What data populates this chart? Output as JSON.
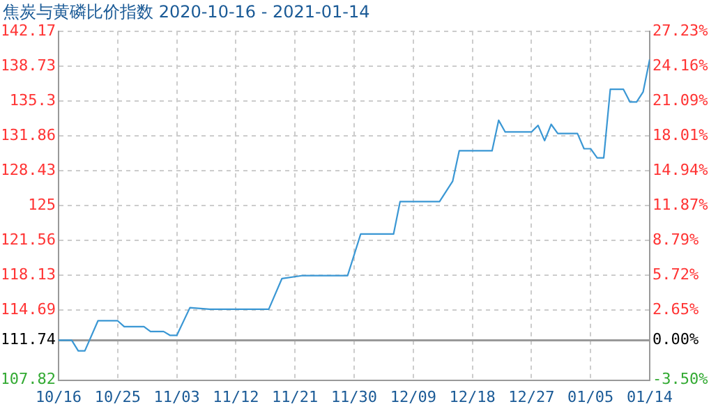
{
  "chart_data": {
    "type": "line",
    "title": "焦炭与黄磷比价指数 2020-10-16 - 2021-01-14",
    "x": [
      "2020-10-16",
      "2020-10-18",
      "2020-10-19",
      "2020-10-20",
      "2020-10-22",
      "2020-10-25",
      "2020-10-26",
      "2020-10-29",
      "2020-10-30",
      "2020-11-01",
      "2020-11-02",
      "2020-11-03",
      "2020-11-05",
      "2020-11-08",
      "2020-11-17",
      "2020-11-19",
      "2020-11-22",
      "2020-11-29",
      "2020-12-01",
      "2020-12-06",
      "2020-12-07",
      "2020-12-13",
      "2020-12-15",
      "2020-12-16",
      "2020-12-21",
      "2020-12-22",
      "2020-12-23",
      "2020-12-27",
      "2020-12-28",
      "2020-12-29",
      "2020-12-30",
      "2020-12-31",
      "2021-01-03",
      "2021-01-04",
      "2021-01-05",
      "2021-01-06",
      "2021-01-07",
      "2021-01-08",
      "2021-01-10",
      "2021-01-11",
      "2021-01-12",
      "2021-01-13",
      "2021-01-14"
    ],
    "series": [
      {
        "color": "#3a97d4",
        "values": [
          111.74,
          111.74,
          110.7,
          110.7,
          113.66,
          113.66,
          113.08,
          113.08,
          112.6,
          112.6,
          112.22,
          112.22,
          114.95,
          114.8,
          114.8,
          117.81,
          118.1,
          118.1,
          122.2,
          122.2,
          125.4,
          125.4,
          127.4,
          130.4,
          130.4,
          133.4,
          132.25,
          132.25,
          132.9,
          131.4,
          133.0,
          132.1,
          132.1,
          130.6,
          130.6,
          129.7,
          129.7,
          136.45,
          136.45,
          135.2,
          135.2,
          136.2,
          139.4
        ]
      }
    ],
    "xlim": [
      "2020-10-16",
      "2021-01-14"
    ],
    "xticks": [
      {
        "value": "2020-10-16",
        "label": "10/16"
      },
      {
        "value": "2020-10-25",
        "label": "10/25"
      },
      {
        "value": "2020-11-03",
        "label": "11/03"
      },
      {
        "value": "2020-11-12",
        "label": "11/12"
      },
      {
        "value": "2020-11-21",
        "label": "11/21"
      },
      {
        "value": "2020-11-30",
        "label": "11/30"
      },
      {
        "value": "2020-12-09",
        "label": "12/09"
      },
      {
        "value": "2020-12-18",
        "label": "12/18"
      },
      {
        "value": "2020-12-27",
        "label": "12/27"
      },
      {
        "value": "2021-01-05",
        "label": "01/05"
      },
      {
        "value": "2021-01-14",
        "label": "01/14"
      }
    ],
    "ylim": [
      107.82,
      142.17
    ],
    "yticks": [
      107.82,
      111.74,
      114.69,
      118.13,
      121.56,
      125,
      128.43,
      131.86,
      135.3,
      138.73,
      142.17
    ],
    "y2lim": [
      -3.5,
      27.23
    ],
    "y2ticks": [
      {
        "value": -3.5,
        "label": "-3.50%"
      },
      {
        "value": 0,
        "label": "0.00%"
      },
      {
        "value": 2.65,
        "label": "2.65%"
      },
      {
        "value": 5.72,
        "label": "5.72%"
      },
      {
        "value": 8.79,
        "label": "8.79%"
      },
      {
        "value": 11.87,
        "label": "11.87%"
      },
      {
        "value": 14.94,
        "label": "14.94%"
      },
      {
        "value": 18.01,
        "label": "18.01%"
      },
      {
        "value": 21.09,
        "label": "21.09%"
      },
      {
        "value": 24.16,
        "label": "24.16%"
      },
      {
        "value": 27.23,
        "label": "27.23%"
      }
    ],
    "ref_lines": [
      {
        "axis": "y",
        "value": 111.74,
        "color": "#999999"
      }
    ],
    "grid": true,
    "legend": false,
    "marker": "none",
    "line_style": "solid"
  }
}
